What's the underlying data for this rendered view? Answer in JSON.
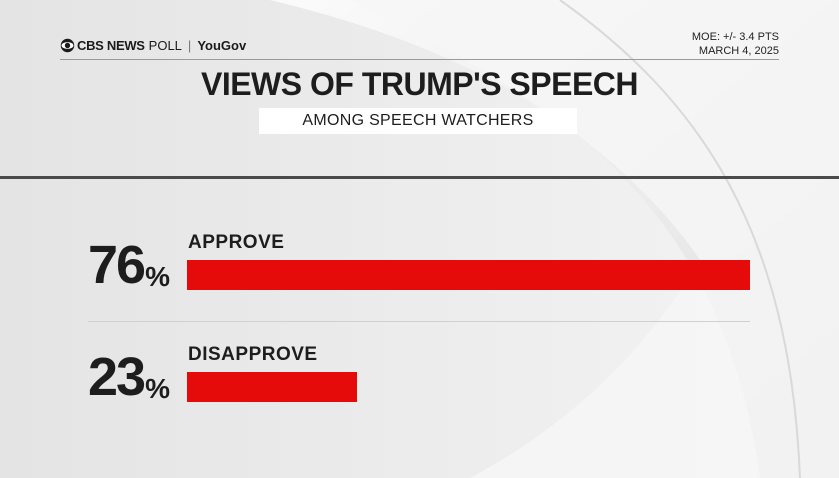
{
  "header": {
    "brand_cbs": "CBS NEWS",
    "brand_poll": "POLL",
    "brand_sep": "|",
    "brand_partner": "YouGov",
    "moe": "MOE: +/- 3.4 PTS",
    "date": "MARCH 4, 2025"
  },
  "chart_data": {
    "type": "bar",
    "orientation": "horizontal",
    "title": "VIEWS OF TRUMP'S SPEECH",
    "subtitle": "AMONG SPEECH WATCHERS",
    "categories": [
      "APPROVE",
      "DISAPPROVE"
    ],
    "values": [
      76,
      23
    ],
    "value_labels": [
      "76",
      "23"
    ],
    "unit": "%",
    "xlim": [
      0,
      76
    ],
    "bar_color": "#e50b0b",
    "grid": false,
    "legend": "none"
  }
}
